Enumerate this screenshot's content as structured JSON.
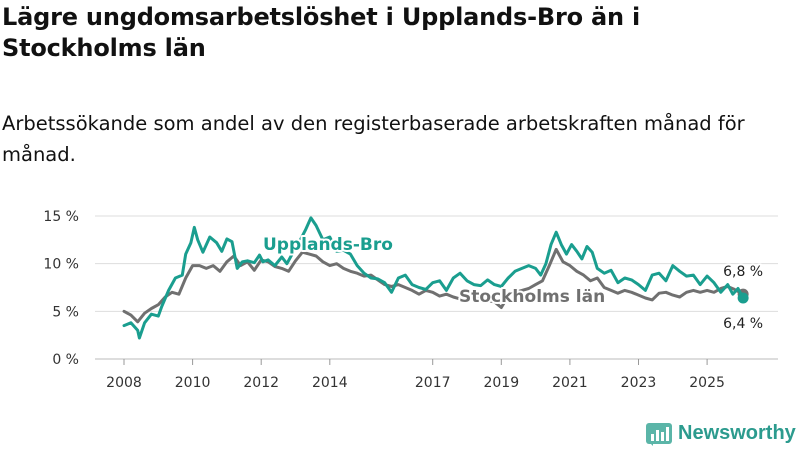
{
  "header": {
    "title": "Lägre ungdomsarbetslöshet i Upplands-Bro än i Stockholms län",
    "subtitle": "Arbetssökande som andel av den registerbaserade arbetskraften månad för månad."
  },
  "brand": {
    "name": "Newsworthy"
  },
  "colors": {
    "upplands": "#1a9e8f",
    "stockholm": "#707070",
    "grid": "#dddddd"
  },
  "chart_data": {
    "type": "line",
    "title": "Lägre ungdomsarbetslöshet i Upplands-Bro än i Stockholms län",
    "xlabel": "",
    "ylabel": "",
    "ylim": [
      0,
      15
    ],
    "xlim": [
      2008,
      2026.6
    ],
    "y_ticks": [
      0,
      5,
      10,
      15
    ],
    "y_tick_labels": [
      "0 %",
      "5 %",
      "10 %",
      "15 %"
    ],
    "x_ticks": [
      2008,
      2010,
      2012,
      2014,
      2017,
      2019,
      2021,
      2023,
      2025
    ],
    "x_tick_labels": [
      "2008",
      "2010",
      "2012",
      "2014",
      "2017",
      "2019",
      "2021",
      "2023",
      "2025"
    ],
    "series": [
      {
        "name": "Upplands-Bro",
        "label": "Upplands-Bro",
        "end_label": "6,4 %",
        "points": [
          [
            2008.0,
            3.5
          ],
          [
            2008.2,
            3.8
          ],
          [
            2008.4,
            3.0
          ],
          [
            2008.45,
            2.2
          ],
          [
            2008.6,
            3.8
          ],
          [
            2008.8,
            4.7
          ],
          [
            2009.0,
            4.5
          ],
          [
            2009.1,
            5.5
          ],
          [
            2009.3,
            7.2
          ],
          [
            2009.5,
            8.5
          ],
          [
            2009.7,
            8.8
          ],
          [
            2009.8,
            11.0
          ],
          [
            2009.95,
            12.2
          ],
          [
            2010.05,
            13.8
          ],
          [
            2010.15,
            12.5
          ],
          [
            2010.3,
            11.2
          ],
          [
            2010.5,
            12.8
          ],
          [
            2010.7,
            12.2
          ],
          [
            2010.85,
            11.3
          ],
          [
            2011.0,
            12.6
          ],
          [
            2011.15,
            12.3
          ],
          [
            2011.3,
            9.5
          ],
          [
            2011.45,
            10.2
          ],
          [
            2011.6,
            10.3
          ],
          [
            2011.8,
            10.1
          ],
          [
            2011.95,
            10.9
          ],
          [
            2012.05,
            10.2
          ],
          [
            2012.2,
            10.4
          ],
          [
            2012.4,
            9.8
          ],
          [
            2012.6,
            10.7
          ],
          [
            2012.75,
            10.0
          ],
          [
            2012.9,
            11.0
          ],
          [
            2013.1,
            12.2
          ],
          [
            2013.3,
            13.6
          ],
          [
            2013.45,
            14.8
          ],
          [
            2013.6,
            14.0
          ],
          [
            2013.8,
            12.5
          ],
          [
            2014.0,
            12.8
          ],
          [
            2014.2,
            11.3
          ],
          [
            2014.4,
            11.4
          ],
          [
            2014.6,
            11.0
          ],
          [
            2014.8,
            9.8
          ],
          [
            2015.0,
            9.0
          ],
          [
            2015.2,
            8.5
          ],
          [
            2015.4,
            8.4
          ],
          [
            2015.6,
            8.0
          ],
          [
            2015.8,
            7.0
          ],
          [
            2016.0,
            8.5
          ],
          [
            2016.2,
            8.8
          ],
          [
            2016.4,
            7.8
          ],
          [
            2016.6,
            7.5
          ],
          [
            2016.8,
            7.3
          ],
          [
            2017.0,
            8.0
          ],
          [
            2017.2,
            8.2
          ],
          [
            2017.4,
            7.2
          ],
          [
            2017.6,
            8.5
          ],
          [
            2017.8,
            9.0
          ],
          [
            2018.0,
            8.2
          ],
          [
            2018.2,
            7.8
          ],
          [
            2018.4,
            7.7
          ],
          [
            2018.6,
            8.3
          ],
          [
            2018.8,
            7.8
          ],
          [
            2019.0,
            7.6
          ],
          [
            2019.2,
            8.5
          ],
          [
            2019.4,
            9.2
          ],
          [
            2019.6,
            9.5
          ],
          [
            2019.8,
            9.8
          ],
          [
            2020.0,
            9.5
          ],
          [
            2020.15,
            8.8
          ],
          [
            2020.3,
            10.0
          ],
          [
            2020.45,
            12.0
          ],
          [
            2020.6,
            13.3
          ],
          [
            2020.75,
            12.0
          ],
          [
            2020.9,
            11.0
          ],
          [
            2021.05,
            12.0
          ],
          [
            2021.2,
            11.3
          ],
          [
            2021.35,
            10.5
          ],
          [
            2021.5,
            11.8
          ],
          [
            2021.65,
            11.2
          ],
          [
            2021.8,
            9.5
          ],
          [
            2022.0,
            9.0
          ],
          [
            2022.2,
            9.3
          ],
          [
            2022.4,
            8.0
          ],
          [
            2022.6,
            8.5
          ],
          [
            2022.8,
            8.3
          ],
          [
            2023.0,
            7.8
          ],
          [
            2023.2,
            7.2
          ],
          [
            2023.4,
            8.8
          ],
          [
            2023.6,
            9.0
          ],
          [
            2023.8,
            8.2
          ],
          [
            2024.0,
            9.8
          ],
          [
            2024.2,
            9.2
          ],
          [
            2024.4,
            8.7
          ],
          [
            2024.6,
            8.8
          ],
          [
            2024.8,
            7.8
          ],
          [
            2025.0,
            8.7
          ],
          [
            2025.2,
            8.0
          ],
          [
            2025.4,
            7.0
          ],
          [
            2025.6,
            7.8
          ],
          [
            2025.75,
            6.8
          ],
          [
            2025.9,
            7.4
          ],
          [
            2026.05,
            6.4
          ]
        ]
      },
      {
        "name": "Stockholms län",
        "label": "Stockholms län",
        "end_label": "6,8 %",
        "points": [
          [
            2008.0,
            5.0
          ],
          [
            2008.2,
            4.6
          ],
          [
            2008.4,
            3.9
          ],
          [
            2008.6,
            4.8
          ],
          [
            2008.8,
            5.3
          ],
          [
            2009.0,
            5.7
          ],
          [
            2009.2,
            6.5
          ],
          [
            2009.4,
            7.0
          ],
          [
            2009.6,
            6.8
          ],
          [
            2009.8,
            8.5
          ],
          [
            2010.0,
            9.8
          ],
          [
            2010.2,
            9.8
          ],
          [
            2010.4,
            9.5
          ],
          [
            2010.6,
            9.8
          ],
          [
            2010.8,
            9.2
          ],
          [
            2011.0,
            10.2
          ],
          [
            2011.2,
            10.8
          ],
          [
            2011.4,
            9.8
          ],
          [
            2011.6,
            10.2
          ],
          [
            2011.8,
            9.3
          ],
          [
            2012.0,
            10.4
          ],
          [
            2012.2,
            10.2
          ],
          [
            2012.4,
            9.7
          ],
          [
            2012.6,
            9.5
          ],
          [
            2012.8,
            9.2
          ],
          [
            2013.0,
            10.3
          ],
          [
            2013.2,
            11.2
          ],
          [
            2013.4,
            11.0
          ],
          [
            2013.6,
            10.8
          ],
          [
            2013.8,
            10.2
          ],
          [
            2014.0,
            9.8
          ],
          [
            2014.2,
            10.0
          ],
          [
            2014.4,
            9.5
          ],
          [
            2014.6,
            9.2
          ],
          [
            2014.8,
            9.0
          ],
          [
            2015.0,
            8.7
          ],
          [
            2015.2,
            8.8
          ],
          [
            2015.4,
            8.3
          ],
          [
            2015.6,
            7.8
          ],
          [
            2015.8,
            7.6
          ],
          [
            2016.0,
            7.8
          ],
          [
            2016.2,
            7.5
          ],
          [
            2016.4,
            7.2
          ],
          [
            2016.6,
            6.8
          ],
          [
            2016.8,
            7.2
          ],
          [
            2017.0,
            7.0
          ],
          [
            2017.2,
            6.6
          ],
          [
            2017.4,
            6.8
          ],
          [
            2017.6,
            6.5
          ],
          [
            2017.8,
            6.3
          ],
          [
            2018.0,
            6.5
          ],
          [
            2018.2,
            6.3
          ],
          [
            2018.4,
            6.4
          ],
          [
            2018.6,
            6.1
          ],
          [
            2018.8,
            6.0
          ],
          [
            2019.0,
            5.4
          ],
          [
            2019.2,
            6.6
          ],
          [
            2019.4,
            7.0
          ],
          [
            2019.6,
            7.2
          ],
          [
            2019.8,
            7.4
          ],
          [
            2020.0,
            7.8
          ],
          [
            2020.2,
            8.2
          ],
          [
            2020.4,
            9.8
          ],
          [
            2020.6,
            11.5
          ],
          [
            2020.8,
            10.2
          ],
          [
            2021.0,
            9.8
          ],
          [
            2021.2,
            9.2
          ],
          [
            2021.4,
            8.8
          ],
          [
            2021.6,
            8.2
          ],
          [
            2021.8,
            8.5
          ],
          [
            2022.0,
            7.5
          ],
          [
            2022.2,
            7.2
          ],
          [
            2022.4,
            6.9
          ],
          [
            2022.6,
            7.2
          ],
          [
            2022.8,
            7.0
          ],
          [
            2023.0,
            6.7
          ],
          [
            2023.2,
            6.4
          ],
          [
            2023.4,
            6.2
          ],
          [
            2023.6,
            6.9
          ],
          [
            2023.8,
            7.0
          ],
          [
            2024.0,
            6.7
          ],
          [
            2024.2,
            6.5
          ],
          [
            2024.4,
            7.0
          ],
          [
            2024.6,
            7.2
          ],
          [
            2024.8,
            7.0
          ],
          [
            2025.0,
            7.2
          ],
          [
            2025.2,
            7.0
          ],
          [
            2025.4,
            7.4
          ],
          [
            2025.6,
            7.6
          ],
          [
            2025.8,
            7.3
          ],
          [
            2026.05,
            6.8
          ]
        ]
      }
    ]
  }
}
